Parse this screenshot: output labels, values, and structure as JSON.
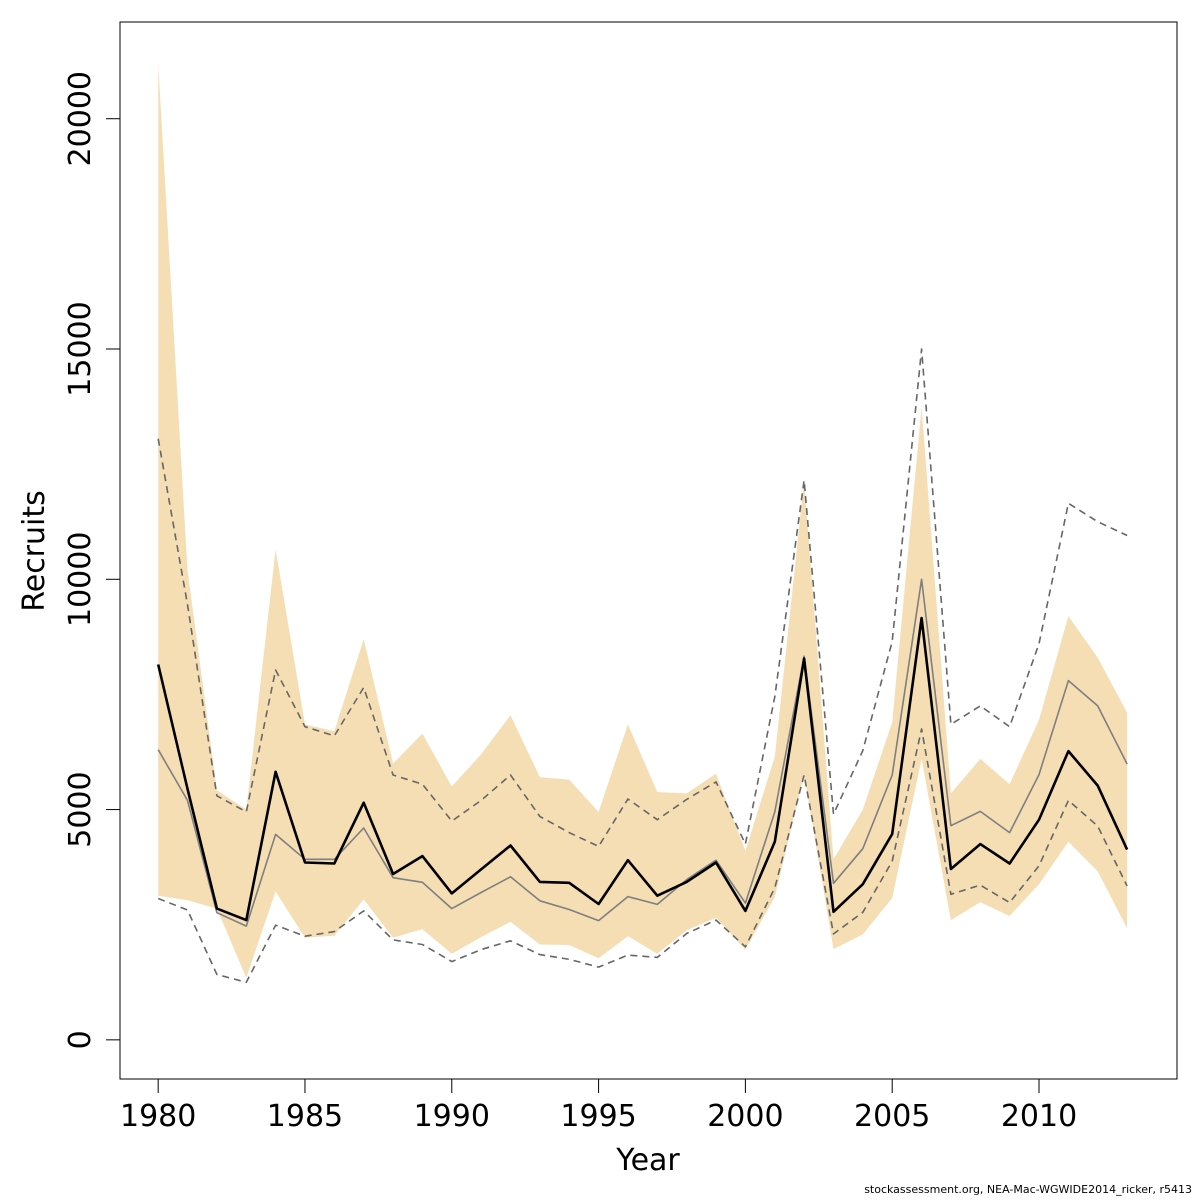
{
  "chart_data": {
    "type": "line",
    "title": "",
    "xlabel": "Year",
    "ylabel": "Recruits",
    "xlim": [
      1978.7,
      2014.7
    ],
    "ylim": [
      -850,
      22100
    ],
    "x_ticks": [
      1980,
      1985,
      1990,
      1995,
      2000,
      2005,
      2010
    ],
    "y_ticks": [
      0,
      5000,
      10000,
      15000,
      20000
    ],
    "grid": false,
    "legend": "none",
    "x": [
      1980,
      1981,
      1982,
      1983,
      1984,
      1985,
      1986,
      1987,
      1988,
      1989,
      1990,
      1991,
      1992,
      1993,
      1994,
      1995,
      1996,
      1997,
      1998,
      1999,
      2000,
      2001,
      2002,
      2003,
      2004,
      2005,
      2006,
      2007,
      2008,
      2009,
      2010,
      2011,
      2012,
      2013
    ],
    "band": {
      "color": "#f5deb3",
      "upper": [
        21200,
        10200,
        5420,
        5000,
        10650,
        6850,
        6700,
        8700,
        6000,
        6650,
        5500,
        6200,
        7050,
        5700,
        5650,
        4950,
        6850,
        5380,
        5350,
        5780,
        4100,
        6150,
        12150,
        3920,
        5000,
        6900,
        13750,
        5350,
        6100,
        5550,
        6950,
        9200,
        8300,
        7100
      ],
      "lower": [
        3130,
        3030,
        2850,
        1350,
        3220,
        2220,
        2260,
        3050,
        2220,
        2400,
        1870,
        2230,
        2560,
        2070,
        2060,
        1770,
        2250,
        1870,
        2380,
        2650,
        1960,
        3100,
        5750,
        1970,
        2290,
        3080,
        6100,
        2600,
        2990,
        2690,
        3380,
        4300,
        3660,
        2420
      ]
    },
    "series": [
      {
        "role": "estimate",
        "color": "#000000",
        "values": [
          8150,
          5450,
          2850,
          2600,
          5820,
          3850,
          3830,
          5150,
          3600,
          3990,
          3180,
          3700,
          4220,
          3430,
          3410,
          2950,
          3900,
          3130,
          3430,
          3850,
          2800,
          4300,
          8280,
          2780,
          3380,
          4470,
          9160,
          3710,
          4250,
          3830,
          4780,
          6270,
          5520,
          4130
        ]
      },
      {
        "role": "comparison",
        "color": "#7f7f7f",
        "values": [
          6300,
          5200,
          2760,
          2470,
          4460,
          3920,
          3920,
          4600,
          3520,
          3420,
          2850,
          3200,
          3540,
          3020,
          2830,
          2590,
          3110,
          2940,
          3480,
          3900,
          2970,
          4950,
          8330,
          3400,
          4150,
          5750,
          10000,
          4650,
          4960,
          4500,
          5760,
          7800,
          7250,
          5990
        ]
      },
      {
        "role": "upper-dashed",
        "color": "#666666",
        "dashed": true,
        "values": [
          13050,
          9450,
          5300,
          4950,
          8030,
          6800,
          6600,
          7650,
          5750,
          5550,
          4750,
          5200,
          5750,
          4850,
          4500,
          4200,
          5230,
          4780,
          5220,
          5600,
          4250,
          7450,
          12150,
          4900,
          6280,
          8650,
          15000,
          6850,
          7250,
          6800,
          8600,
          11650,
          11250,
          10950
        ]
      },
      {
        "role": "lower-dashed",
        "color": "#666666",
        "dashed": true,
        "values": [
          3070,
          2820,
          1420,
          1250,
          2490,
          2250,
          2350,
          2800,
          2170,
          2070,
          1700,
          1960,
          2150,
          1850,
          1750,
          1580,
          1840,
          1790,
          2310,
          2600,
          2020,
          3300,
          5750,
          2300,
          2770,
          3880,
          6750,
          3160,
          3360,
          2980,
          3780,
          5200,
          4640,
          3340
        ]
      }
    ]
  },
  "credit": "stockassessment.org, NEA-Mac-WGWIDE2014_ricker, r5413"
}
